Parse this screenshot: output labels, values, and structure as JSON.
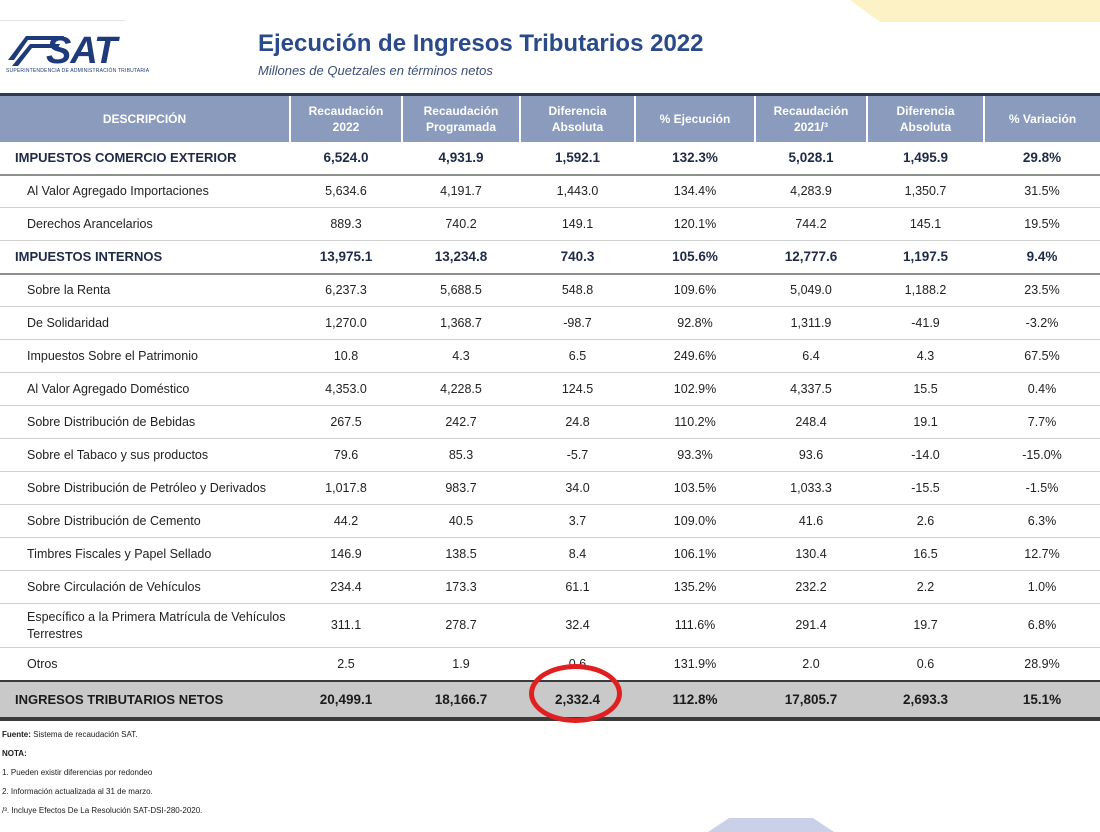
{
  "logo": {
    "text": "SAT",
    "subtext": "SUPERINTENDENCIA DE ADMINISTRACIÓN TRIBUTARIA"
  },
  "title": "Ejecución de Ingresos Tributarios 2022",
  "subtitle": "Millones de Quetzales en términos netos",
  "table": {
    "headers": [
      "DESCRIPCIÓN",
      "Recaudación 2022",
      "Recaudación Programada",
      "Diferencia Absoluta",
      "% Ejecución",
      "Recaudación 2021/³",
      "Diferencia Absoluta",
      "% Variación"
    ],
    "rows": [
      {
        "type": "group",
        "cells": [
          "IMPUESTOS COMERCIO EXTERIOR",
          "6,524.0",
          "4,931.9",
          "1,592.1",
          "132.3%",
          "5,028.1",
          "1,495.9",
          "29.8%"
        ]
      },
      {
        "type": "item",
        "cells": [
          "Al Valor Agregado Importaciones",
          "5,634.6",
          "4,191.7",
          "1,443.0",
          "134.4%",
          "4,283.9",
          "1,350.7",
          "31.5%"
        ]
      },
      {
        "type": "item",
        "cells": [
          "Derechos Arancelarios",
          "889.3",
          "740.2",
          "149.1",
          "120.1%",
          "744.2",
          "145.1",
          "19.5%"
        ]
      },
      {
        "type": "group",
        "cells": [
          "IMPUESTOS INTERNOS",
          "13,975.1",
          "13,234.8",
          "740.3",
          "105.6%",
          "12,777.6",
          "1,197.5",
          "9.4%"
        ]
      },
      {
        "type": "item",
        "cells": [
          "Sobre la Renta",
          "6,237.3",
          "5,688.5",
          "548.8",
          "109.6%",
          "5,049.0",
          "1,188.2",
          "23.5%"
        ]
      },
      {
        "type": "item",
        "cells": [
          "De Solidaridad",
          "1,270.0",
          "1,368.7",
          "-98.7",
          "92.8%",
          "1,311.9",
          "-41.9",
          "-3.2%"
        ]
      },
      {
        "type": "item",
        "cells": [
          "Impuestos Sobre el Patrimonio",
          "10.8",
          "4.3",
          "6.5",
          "249.6%",
          "6.4",
          "4.3",
          "67.5%"
        ]
      },
      {
        "type": "item",
        "cells": [
          "Al Valor Agregado Doméstico",
          "4,353.0",
          "4,228.5",
          "124.5",
          "102.9%",
          "4,337.5",
          "15.5",
          "0.4%"
        ]
      },
      {
        "type": "item",
        "cells": [
          "Sobre Distribución de Bebidas",
          "267.5",
          "242.7",
          "24.8",
          "110.2%",
          "248.4",
          "19.1",
          "7.7%"
        ]
      },
      {
        "type": "item",
        "cells": [
          "Sobre el Tabaco y sus productos",
          "79.6",
          "85.3",
          "-5.7",
          "93.3%",
          "93.6",
          "-14.0",
          "-15.0%"
        ]
      },
      {
        "type": "item",
        "cells": [
          "Sobre Distribución de Petróleo y Derivados",
          "1,017.8",
          "983.7",
          "34.0",
          "103.5%",
          "1,033.3",
          "-15.5",
          "-1.5%"
        ]
      },
      {
        "type": "item",
        "cells": [
          "Sobre Distribución de Cemento",
          "44.2",
          "40.5",
          "3.7",
          "109.0%",
          "41.6",
          "2.6",
          "6.3%"
        ]
      },
      {
        "type": "item",
        "cells": [
          "Timbres Fiscales y Papel Sellado",
          "146.9",
          "138.5",
          "8.4",
          "106.1%",
          "130.4",
          "16.5",
          "12.7%"
        ]
      },
      {
        "type": "item",
        "cells": [
          "Sobre Circulación de Vehículos",
          "234.4",
          "173.3",
          "61.1",
          "135.2%",
          "232.2",
          "2.2",
          "1.0%"
        ]
      },
      {
        "type": "tall",
        "cells": [
          "Específico a la Primera Matrícula de Vehículos Terrestres",
          "311.1",
          "278.7",
          "32.4",
          "111.6%",
          "291.4",
          "19.7",
          "6.8%"
        ]
      },
      {
        "type": "item",
        "cells": [
          "Otros",
          "2.5",
          "1.9",
          "0.6",
          "131.9%",
          "2.0",
          "0.6",
          "28.9%"
        ]
      },
      {
        "type": "total",
        "cells": [
          "INGRESOS TRIBUTARIOS NETOS",
          "20,499.1",
          "18,166.7",
          "2,332.4",
          "112.8%",
          "17,805.7",
          "2,693.3",
          "15.1%"
        ]
      }
    ]
  },
  "notes": {
    "source_label": "Fuente:",
    "source_text": " Sistema de recaudación SAT.",
    "nota_label": "NOTA:",
    "items": [
      "1. Pueden existir diferencias por redondeo",
      "2. Información actualizada al  31 de marzo.",
      "/³. Incluye Efectos De La Resolución SAT-DSI-280-2020."
    ]
  },
  "colors": {
    "header_bg": "#8a9bbd",
    "title": "#2a4a8a",
    "highlight_circle": "#e02020",
    "total_bg": "#c9c9c9"
  }
}
